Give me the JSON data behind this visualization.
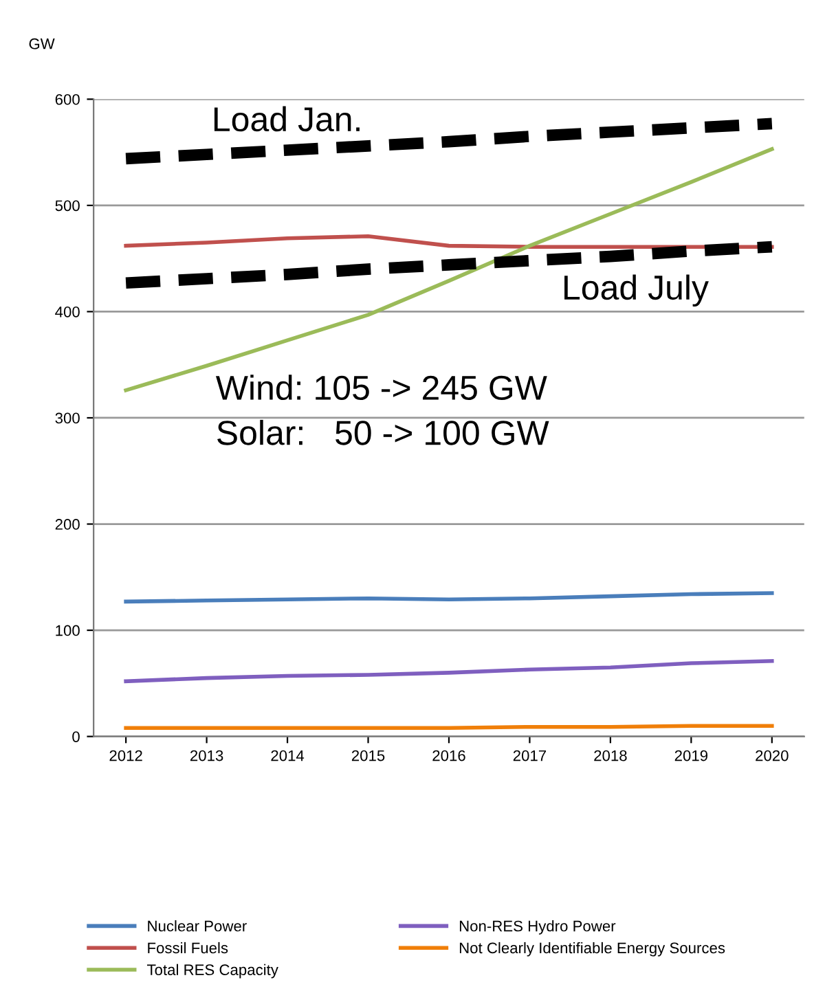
{
  "chart_data": {
    "type": "line",
    "ylabel": "GW",
    "categories": [
      "2012",
      "2013",
      "2014",
      "2015",
      "2016",
      "2017",
      "2018",
      "2019",
      "2020"
    ],
    "series": [
      {
        "name": "Nuclear Power",
        "color": "#4a7ebb",
        "values": [
          127,
          128,
          129,
          130,
          129,
          130,
          132,
          134,
          135
        ]
      },
      {
        "name": "Fossil Fuels",
        "color": "#c0504d",
        "values": [
          462,
          465,
          469,
          471,
          462,
          461,
          461,
          461,
          461
        ]
      },
      {
        "name": "Total RES Capacity",
        "color": "#9bbb59",
        "values": [
          326,
          349,
          373,
          397,
          429,
          462,
          492,
          522,
          553
        ]
      },
      {
        "name": "Non-RES Hydro Power",
        "color": "#7f5fbf",
        "values": [
          52,
          55,
          57,
          58,
          60,
          63,
          65,
          69,
          71
        ]
      },
      {
        "name": "Not Clearly Identifiable Energy Sources",
        "color": "#f07f09",
        "values": [
          8,
          8,
          8,
          8,
          8,
          9,
          9,
          10,
          10
        ]
      },
      {
        "color": "#000000",
        "line_style": "dashed",
        "values": [
          544,
          548,
          552,
          556,
          560,
          565,
          569,
          573,
          577
        ]
      },
      {
        "color": "#000000",
        "line_style": "dashed",
        "values": [
          427,
          431,
          435,
          440,
          444,
          448,
          452,
          457,
          461
        ]
      }
    ],
    "ylim": [
      0,
      600
    ],
    "yticks": [
      0,
      100,
      200,
      300,
      400,
      500,
      600
    ],
    "grid": "y",
    "legend": "bottom",
    "marker": "none",
    "annotations": [
      "Load Jan.",
      "Load July",
      "Wind: 105 -> 245 GW",
      "Solar:   50 -> 100 GW"
    ]
  }
}
